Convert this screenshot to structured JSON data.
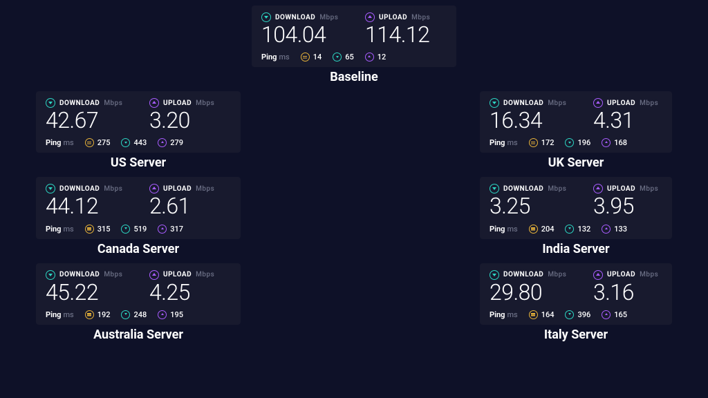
{
  "theme": {
    "page_bg": "#0e1128",
    "card_bg": "#181a2e",
    "text_primary": "#ffffff",
    "text_muted": "#6b6f85",
    "download_accent": "#2cd6c3",
    "upload_accent": "#a85cff",
    "ping_idle_accent": "#e8b339",
    "title_fontsize_pt": 14,
    "value_fontsize_pt": 24,
    "header_fontsize_pt": 8
  },
  "labels": {
    "download": "DOWNLOAD",
    "upload": "UPLOAD",
    "unit": "Mbps",
    "ping": "Ping",
    "ping_unit": "ms"
  },
  "baseline": {
    "title": "Baseline",
    "download": "104.04",
    "upload": "114.12",
    "ping_idle": "14",
    "ping_down": "65",
    "ping_up": "12"
  },
  "left": [
    {
      "title": "US Server",
      "download": "42.67",
      "upload": "3.20",
      "ping_idle": "275",
      "ping_down": "443",
      "ping_up": "279"
    },
    {
      "title": "Canada Server",
      "download": "44.12",
      "upload": "2.61",
      "ping_idle": "315",
      "ping_down": "519",
      "ping_up": "317"
    },
    {
      "title": "Australia Server",
      "download": "45.22",
      "upload": "4.25",
      "ping_idle": "192",
      "ping_down": "248",
      "ping_up": "195"
    }
  ],
  "right": [
    {
      "title": "UK Server",
      "download": "16.34",
      "upload": "4.31",
      "ping_idle": "172",
      "ping_down": "196",
      "ping_up": "168"
    },
    {
      "title": "India Server",
      "download": "3.25",
      "upload": "3.95",
      "ping_idle": "204",
      "ping_down": "132",
      "ping_up": "133"
    },
    {
      "title": "Italy Server",
      "download": "29.80",
      "upload": "3.16",
      "ping_idle": "164",
      "ping_down": "396",
      "ping_up": "165"
    }
  ]
}
